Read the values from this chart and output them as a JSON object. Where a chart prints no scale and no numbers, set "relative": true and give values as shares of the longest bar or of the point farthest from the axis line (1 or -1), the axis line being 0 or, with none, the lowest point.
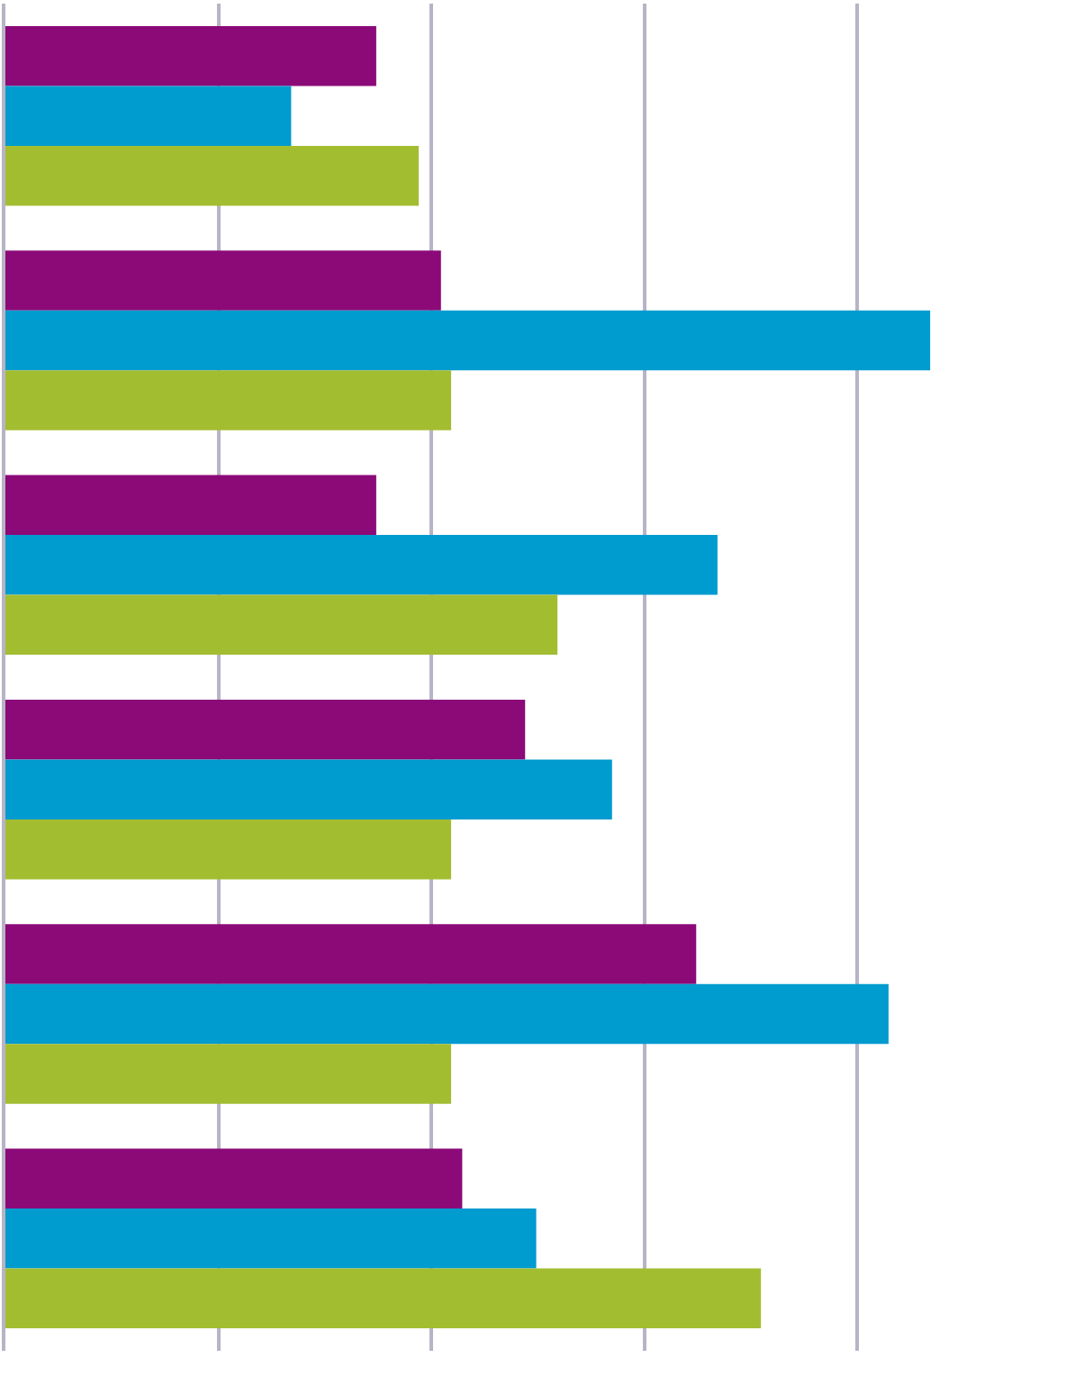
{
  "chart_data": {
    "type": "bar",
    "orientation": "horizontal",
    "relative": true,
    "grid": "x",
    "categories": [
      null,
      null,
      null,
      null,
      null,
      null
    ],
    "series": [
      {
        "color": "#8b0a78",
        "values": [
          0.401,
          0.471,
          0.401,
          0.562,
          0.747,
          0.494
        ]
      },
      {
        "color": "#009bcf",
        "values": [
          0.309,
          1,
          0.77,
          0.656,
          0.955,
          0.574
        ]
      },
      {
        "color": "#a3bd31",
        "values": [
          0.447,
          0.482,
          0.597,
          0.482,
          0.482,
          0.817
        ]
      }
    ]
  }
}
